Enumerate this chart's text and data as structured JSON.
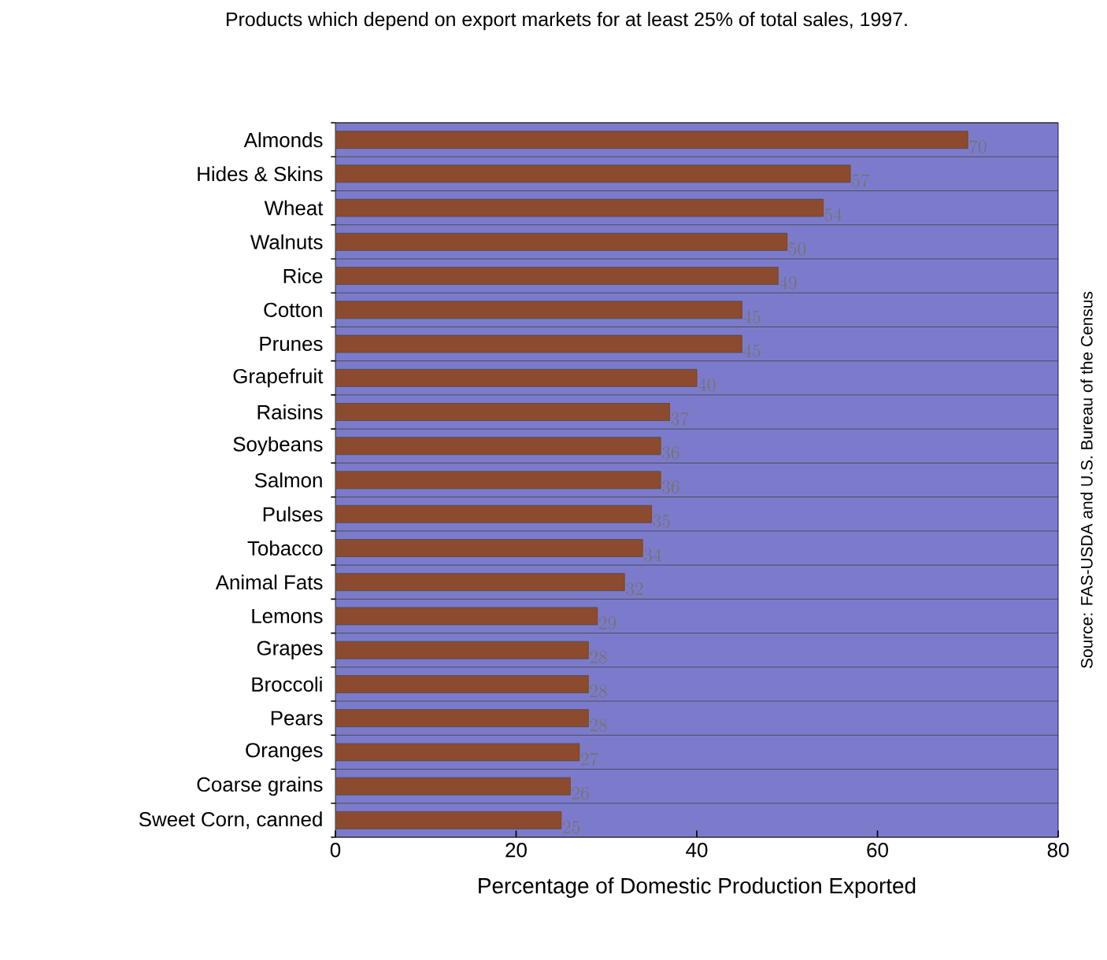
{
  "chart_data": {
    "type": "bar",
    "orientation": "horizontal",
    "title": "Products which depend on export markets for at least 25% of total sales, 1997.",
    "xlabel": "Percentage of Domestic Production Exported",
    "categories": [
      "Almonds",
      "Hides & Skins",
      "Wheat",
      "Walnuts",
      "Rice",
      "Cotton",
      "Prunes",
      "Grapefruit",
      "Raisins",
      "Soybeans",
      "Salmon",
      "Pulses",
      "Tobacco",
      "Animal Fats",
      "Lemons",
      "Grapes",
      "Broccoli",
      "Pears",
      "Oranges",
      "Coarse grains",
      "Sweet Corn, canned"
    ],
    "values": [
      70,
      57,
      54,
      50,
      49,
      45,
      45,
      40,
      37,
      36,
      36,
      35,
      34,
      32,
      29,
      28,
      28,
      28,
      27,
      26,
      25
    ],
    "color": "#8c4a2e",
    "xlim": [
      0,
      80
    ],
    "xticks": [
      0,
      20,
      40,
      60,
      80
    ],
    "grid": "y",
    "data_labels": true,
    "annotations": [
      "Source: FAS-USDA and U.S. Bureau of the Census"
    ]
  }
}
